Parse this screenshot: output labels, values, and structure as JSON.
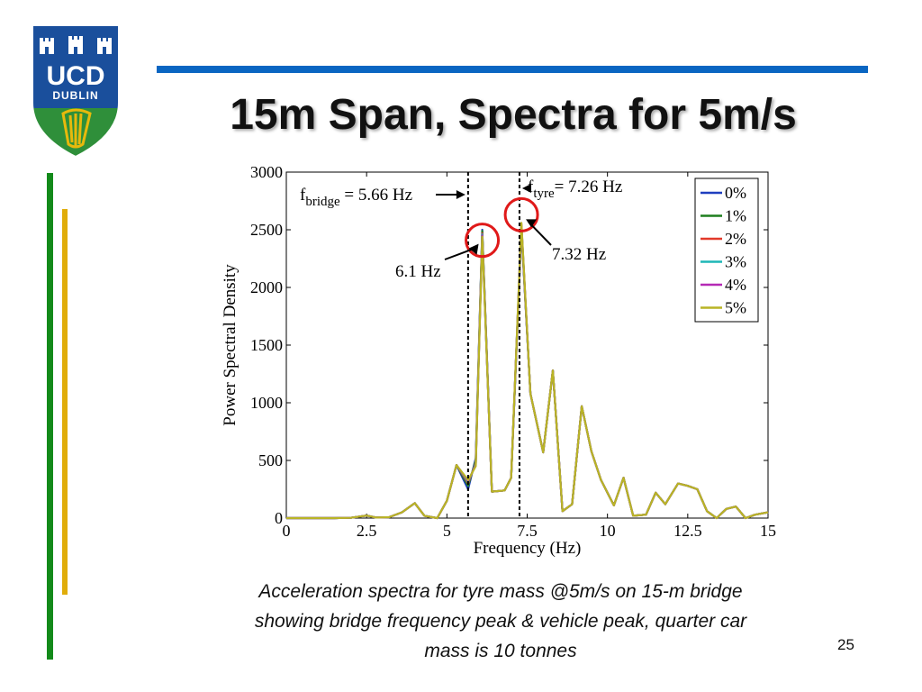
{
  "slide": {
    "title": "15m Span, Spectra for 5m/s",
    "caption_lines": [
      "Acceleration spectra for tyre mass @5m/s on 15-m bridge",
      "showing bridge frequency peak & vehicle peak, quarter car",
      "mass is 10 tonnes"
    ],
    "page_number": "25"
  },
  "logo": {
    "line1": "UCD",
    "line2": "DUBLIN",
    "colors": {
      "blue": "#1a4f9c",
      "green": "#2f8f3a",
      "gold": "#e8b90c"
    }
  },
  "chart_data": {
    "type": "line",
    "xlabel": "Frequency (Hz)",
    "ylabel": "Power Spectral Density",
    "xlim": [
      0,
      15
    ],
    "ylim": [
      0,
      3000
    ],
    "xticks": [
      0,
      2.5,
      5,
      7.5,
      10,
      12.5,
      15
    ],
    "xtick_labels": [
      "0",
      "2.5",
      "5",
      "7.5",
      "10",
      "12.5",
      "15"
    ],
    "yticks": [
      0,
      500,
      1000,
      1500,
      2000,
      2500,
      3000
    ],
    "ytick_labels": [
      "0",
      "500",
      "1000",
      "1500",
      "2000",
      "2500",
      "3000"
    ],
    "grid": false,
    "legend_position": "top-right",
    "series": [
      {
        "name": "0%",
        "color": "#1f3fbf",
        "x": [
          0,
          0.5,
          1,
          1.5,
          2,
          2.5,
          2.8,
          3.2,
          3.6,
          4,
          4.3,
          4.7,
          5,
          5.3,
          5.66,
          5.9,
          6.1,
          6.4,
          6.8,
          7.0,
          7.32,
          7.6,
          8.0,
          8.3,
          8.6,
          8.9,
          9.2,
          9.5,
          9.8,
          10.2,
          10.5,
          10.8,
          11.2,
          11.5,
          11.8,
          12.2,
          12.5,
          12.8,
          13.1,
          13.4,
          13.7,
          14.0,
          14.3,
          14.6,
          15
        ],
        "y": [
          0,
          0,
          0,
          0,
          2,
          22,
          5,
          8,
          50,
          130,
          20,
          0,
          150,
          460,
          250,
          520,
          2500,
          230,
          240,
          350,
          2500,
          1080,
          570,
          1280,
          60,
          120,
          970,
          580,
          330,
          110,
          350,
          20,
          30,
          220,
          120,
          300,
          280,
          250,
          60,
          0,
          80,
          100,
          0,
          30,
          50
        ]
      },
      {
        "name": "1%",
        "color": "#1e7e1e",
        "x": [
          0,
          0.5,
          1,
          1.5,
          2,
          2.5,
          2.8,
          3.2,
          3.6,
          4,
          4.3,
          4.7,
          5,
          5.3,
          5.66,
          5.9,
          6.1,
          6.4,
          6.8,
          7.0,
          7.32,
          7.6,
          8.0,
          8.3,
          8.6,
          8.9,
          9.2,
          9.5,
          9.8,
          10.2,
          10.5,
          10.8,
          11.2,
          11.5,
          11.8,
          12.2,
          12.5,
          12.8,
          13.1,
          13.4,
          13.7,
          14.0,
          14.3,
          14.6,
          15
        ],
        "y": [
          0,
          0,
          0,
          0,
          2,
          22,
          5,
          8,
          50,
          130,
          20,
          0,
          150,
          460,
          280,
          500,
          2490,
          230,
          240,
          350,
          2520,
          1080,
          570,
          1280,
          60,
          120,
          970,
          580,
          330,
          110,
          350,
          20,
          30,
          220,
          120,
          300,
          280,
          250,
          60,
          0,
          80,
          100,
          0,
          30,
          50
        ]
      },
      {
        "name": "2%",
        "color": "#e23a2a",
        "x": [
          0,
          0.5,
          1,
          1.5,
          2,
          2.5,
          2.8,
          3.2,
          3.6,
          4,
          4.3,
          4.7,
          5,
          5.3,
          5.66,
          5.9,
          6.1,
          6.4,
          6.8,
          7.0,
          7.32,
          7.6,
          8.0,
          8.3,
          8.6,
          8.9,
          9.2,
          9.5,
          9.8,
          10.2,
          10.5,
          10.8,
          11.2,
          11.5,
          11.8,
          12.2,
          12.5,
          12.8,
          13.1,
          13.4,
          13.7,
          14.0,
          14.3,
          14.6,
          15
        ],
        "y": [
          0,
          0,
          0,
          0,
          2,
          22,
          5,
          8,
          50,
          130,
          20,
          0,
          150,
          460,
          300,
          480,
          2470,
          230,
          240,
          350,
          2530,
          1080,
          570,
          1280,
          60,
          120,
          970,
          580,
          330,
          110,
          350,
          20,
          30,
          220,
          120,
          300,
          280,
          250,
          60,
          0,
          80,
          100,
          0,
          30,
          50
        ]
      },
      {
        "name": "3%",
        "color": "#1fb7b7",
        "x": [
          0,
          0.5,
          1,
          1.5,
          2,
          2.5,
          2.8,
          3.2,
          3.6,
          4,
          4.3,
          4.7,
          5,
          5.3,
          5.66,
          5.9,
          6.1,
          6.4,
          6.8,
          7.0,
          7.32,
          7.6,
          8.0,
          8.3,
          8.6,
          8.9,
          9.2,
          9.5,
          9.8,
          10.2,
          10.5,
          10.8,
          11.2,
          11.5,
          11.8,
          12.2,
          12.5,
          12.8,
          13.1,
          13.4,
          13.7,
          14.0,
          14.3,
          14.6,
          15
        ],
        "y": [
          0,
          0,
          0,
          0,
          2,
          22,
          5,
          8,
          50,
          130,
          20,
          0,
          150,
          460,
          310,
          470,
          2460,
          230,
          240,
          350,
          2540,
          1080,
          570,
          1280,
          60,
          120,
          970,
          580,
          330,
          110,
          350,
          20,
          30,
          220,
          120,
          300,
          280,
          250,
          60,
          0,
          80,
          100,
          0,
          30,
          50
        ]
      },
      {
        "name": "4%",
        "color": "#b52ab5",
        "x": [
          0,
          0.5,
          1,
          1.5,
          2,
          2.5,
          2.8,
          3.2,
          3.6,
          4,
          4.3,
          4.7,
          5,
          5.3,
          5.66,
          5.9,
          6.1,
          6.4,
          6.8,
          7.0,
          7.32,
          7.6,
          8.0,
          8.3,
          8.6,
          8.9,
          9.2,
          9.5,
          9.8,
          10.2,
          10.5,
          10.8,
          11.2,
          11.5,
          11.8,
          12.2,
          12.5,
          12.8,
          13.1,
          13.4,
          13.7,
          14.0,
          14.3,
          14.6,
          15
        ],
        "y": [
          0,
          0,
          0,
          0,
          2,
          22,
          5,
          8,
          50,
          130,
          20,
          0,
          150,
          460,
          320,
          460,
          2450,
          230,
          240,
          350,
          2550,
          1080,
          570,
          1280,
          60,
          120,
          970,
          580,
          330,
          110,
          350,
          20,
          30,
          220,
          120,
          300,
          280,
          250,
          60,
          0,
          80,
          100,
          0,
          30,
          50
        ]
      },
      {
        "name": "5%",
        "color": "#b9b425",
        "x": [
          0,
          0.5,
          1,
          1.5,
          2,
          2.5,
          2.8,
          3.2,
          3.6,
          4,
          4.3,
          4.7,
          5,
          5.3,
          5.66,
          5.9,
          6.1,
          6.4,
          6.8,
          7.0,
          7.32,
          7.6,
          8.0,
          8.3,
          8.6,
          8.9,
          9.2,
          9.5,
          9.8,
          10.2,
          10.5,
          10.8,
          11.2,
          11.5,
          11.8,
          12.2,
          12.5,
          12.8,
          13.1,
          13.4,
          13.7,
          14.0,
          14.3,
          14.6,
          15
        ],
        "y": [
          0,
          0,
          0,
          0,
          2,
          22,
          5,
          8,
          50,
          130,
          20,
          0,
          150,
          460,
          330,
          450,
          2440,
          230,
          240,
          350,
          2560,
          1080,
          570,
          1280,
          60,
          120,
          970,
          580,
          330,
          110,
          350,
          20,
          30,
          220,
          120,
          300,
          280,
          250,
          60,
          0,
          80,
          100,
          0,
          30,
          50
        ]
      }
    ],
    "vlines": [
      {
        "x": 5.66,
        "style": "dashed",
        "color": "#000000"
      },
      {
        "x": 7.26,
        "style": "dashed",
        "color": "#000000"
      }
    ],
    "annotations": {
      "bridge": {
        "prefix": "f",
        "sub": "bridge",
        "suffix": " = 5.66 Hz",
        "x": 5.66
      },
      "tyre": {
        "prefix": "f",
        "sub": "tyre",
        "suffix": "= 7.26 Hz",
        "x": 7.26
      },
      "peak1": {
        "text": "6.1 Hz",
        "x": 6.1,
        "y": 2440
      },
      "peak2": {
        "text": "7.32 Hz",
        "x": 7.32,
        "y": 2560
      }
    },
    "highlight_color": "#e01919"
  }
}
